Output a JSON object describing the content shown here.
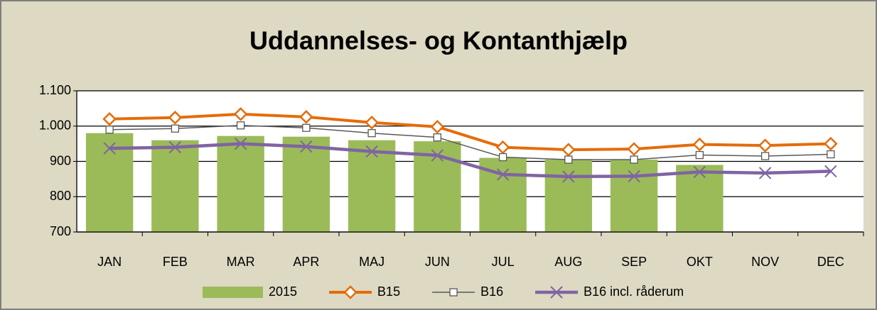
{
  "chart_data": {
    "type": "combo",
    "title": "Uddannelses- og Kontanthjælp",
    "categories": [
      "JAN",
      "FEB",
      "MAR",
      "APR",
      "MAJ",
      "JUN",
      "JUL",
      "AUG",
      "SEP",
      "OKT",
      "NOV",
      "DEC"
    ],
    "ylim": [
      700,
      1100
    ],
    "yticks": [
      700,
      800,
      900,
      {
        "value": 1000,
        "label": "1.000"
      },
      {
        "value": 1100,
        "label": "1.100"
      }
    ],
    "grid": true,
    "legend": "bottom",
    "series": [
      {
        "name": "2015",
        "type": "bar",
        "color": "#9bbb59",
        "values": [
          980,
          960,
          972,
          970,
          960,
          957,
          910,
          905,
          905,
          890,
          null,
          null
        ]
      },
      {
        "name": "B15",
        "type": "line",
        "marker": "diamond",
        "color": "#e46c0a",
        "values": [
          1020,
          1024,
          1034,
          1026,
          1010,
          998,
          940,
          933,
          935,
          948,
          945,
          950
        ]
      },
      {
        "name": "B16",
        "type": "line",
        "marker": "square",
        "color": "#595959",
        "values": [
          990,
          993,
          1002,
          995,
          980,
          968,
          912,
          905,
          905,
          918,
          915,
          920
        ]
      },
      {
        "name": "B16 incl. råderum",
        "type": "line",
        "marker": "x",
        "color": "#8064a2",
        "values": [
          937,
          940,
          950,
          942,
          928,
          917,
          863,
          857,
          858,
          870,
          867,
          872
        ]
      }
    ]
  }
}
